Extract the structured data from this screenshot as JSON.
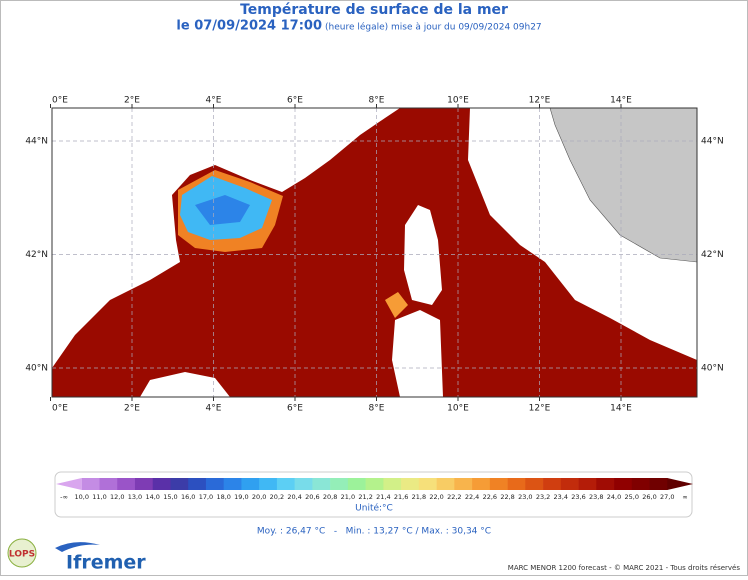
{
  "header": {
    "title": "Température de surface de la mer",
    "date": "le 07/09/2024 17:00",
    "update": "(heure légale) mise à jour du 09/09/2024 09h27"
  },
  "map": {
    "lon_labels": [
      "0°E",
      "2°E",
      "4°E",
      "6°E",
      "8°E",
      "10°E",
      "12°E",
      "14°E"
    ],
    "lat_labels": [
      "44°N",
      "42°N",
      "40°N"
    ]
  },
  "colorbar": {
    "labels": [
      "-∞",
      "10,0",
      "11,0",
      "12,0",
      "13,0",
      "14,0",
      "15,0",
      "16,0",
      "17,0",
      "18,0",
      "19,0",
      "20,0",
      "20,2",
      "20,4",
      "20,6",
      "20,8",
      "21,0",
      "21,2",
      "21,4",
      "21,6",
      "21,8",
      "22,0",
      "22,2",
      "22,4",
      "22,6",
      "22,8",
      "23,0",
      "23,2",
      "23,4",
      "23,6",
      "23,8",
      "24,0",
      "25,0",
      "26,0",
      "27,0",
      "∞"
    ],
    "colors": [
      "#d9a6ee",
      "#c48ce4",
      "#b070d8",
      "#9a54c8",
      "#7e3cb4",
      "#5a30a8",
      "#3c3ca8",
      "#2c50c0",
      "#2a6ad8",
      "#2c84e8",
      "#30a0f0",
      "#40b8f4",
      "#5ccff4",
      "#78dcea",
      "#8ae6d6",
      "#94eeb8",
      "#9cf29a",
      "#b4f28c",
      "#d2f088",
      "#eaea84",
      "#f6e07a",
      "#f8cc64",
      "#f8b44c",
      "#f69c36",
      "#f08224",
      "#e86a1a",
      "#dc5414",
      "#d03e10",
      "#c22c0c",
      "#b41c08",
      "#a00c04",
      "#900000",
      "#800000",
      "#700000",
      "#600000"
    ],
    "unit": "Unité:°C"
  },
  "stats": "Moy. : 26,47 °C   -   Min. : 13,27 °C / Max. : 30,34 °C",
  "logos": {
    "lops": "LOPS",
    "ifremer": "Ifremer"
  },
  "footer": "MARC MENOR 1200 forecast - © MARC 2021 - Tous droits réservés"
}
